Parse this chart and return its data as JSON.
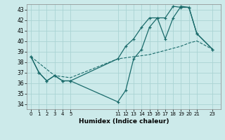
{
  "bg_color": "#cceaea",
  "grid_color": "#aad4d4",
  "line_color": "#1a6b6b",
  "xlabel": "Humidex (Indice chaleur)",
  "xlim": [
    -0.5,
    24.0
  ],
  "ylim": [
    33.5,
    43.5
  ],
  "yticks": [
    34,
    35,
    36,
    37,
    38,
    39,
    40,
    41,
    42,
    43
  ],
  "xticks": [
    0,
    1,
    2,
    3,
    4,
    5,
    11,
    12,
    13,
    14,
    15,
    16,
    17,
    18,
    19,
    20,
    21,
    23
  ],
  "line1_x": [
    0,
    1,
    2,
    3,
    4,
    5,
    11,
    12,
    13,
    14,
    15,
    16,
    17,
    18,
    19,
    20,
    21,
    23
  ],
  "line1_y": [
    38.5,
    37.0,
    36.2,
    36.7,
    36.2,
    36.2,
    34.2,
    35.3,
    38.3,
    39.2,
    41.3,
    42.2,
    40.2,
    42.2,
    43.3,
    43.2,
    40.7,
    39.2
  ],
  "line2_x": [
    0,
    1,
    2,
    3,
    4,
    5,
    11,
    12,
    13,
    14,
    15,
    16,
    17,
    18,
    19,
    20,
    21,
    23
  ],
  "line2_y": [
    38.5,
    37.0,
    36.2,
    36.7,
    36.2,
    36.2,
    38.3,
    39.5,
    40.2,
    41.3,
    42.2,
    42.2,
    42.2,
    43.3,
    43.2,
    43.2,
    40.7,
    39.2
  ],
  "line3_x": [
    0,
    3,
    5,
    11,
    15,
    16,
    17,
    18,
    19,
    20,
    21,
    23
  ],
  "line3_y": [
    38.5,
    36.7,
    36.5,
    38.3,
    38.7,
    38.9,
    39.1,
    39.3,
    39.5,
    39.8,
    40.0,
    39.2
  ]
}
